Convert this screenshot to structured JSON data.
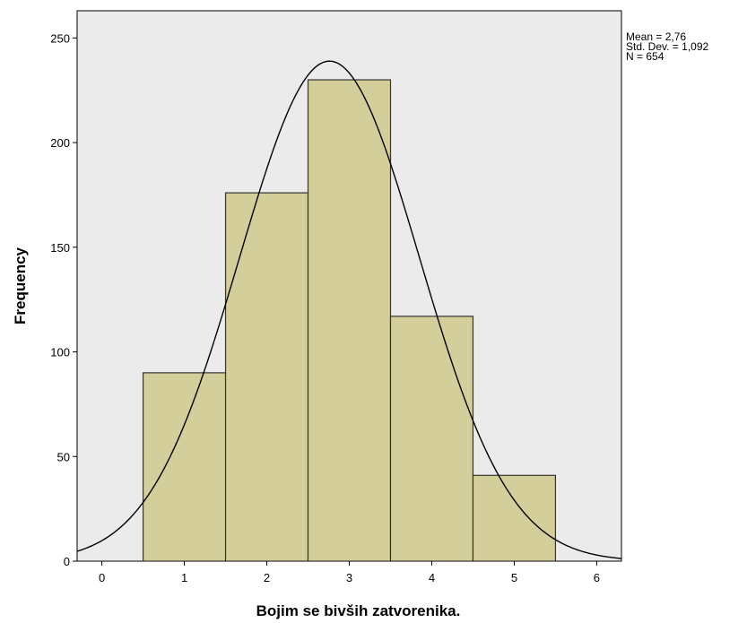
{
  "chart_data": {
    "type": "bar",
    "subtype": "histogram-with-normal-curve",
    "xlabel": "Bojim se bivših zatvorenika.",
    "ylabel": "Frequency",
    "x_ticks": [
      "0",
      "1",
      "2",
      "3",
      "4",
      "5",
      "6"
    ],
    "y_ticks": [
      "0",
      "50",
      "100",
      "150",
      "200",
      "250"
    ],
    "xlim": [
      -0.3,
      6.3
    ],
    "ylim": [
      0,
      263
    ],
    "bins": [
      {
        "center": 1,
        "value": 90
      },
      {
        "center": 2,
        "value": 176
      },
      {
        "center": 3,
        "value": 230
      },
      {
        "center": 4,
        "value": 117
      },
      {
        "center": 5,
        "value": 41
      }
    ],
    "bin_width": 1,
    "normal_curve": {
      "mean": 2.76,
      "sd": 1.092,
      "n": 654
    },
    "stats": {
      "mean_label": "Mean = 2,76",
      "sd_label": "Std. Dev. = 1,092",
      "n_label": "N = 654"
    },
    "colors": {
      "plot_background": "#ebebeb",
      "bar_fill": "#d4cf9a",
      "bar_stroke": "#333333",
      "curve": "#000000"
    },
    "grid": false
  }
}
